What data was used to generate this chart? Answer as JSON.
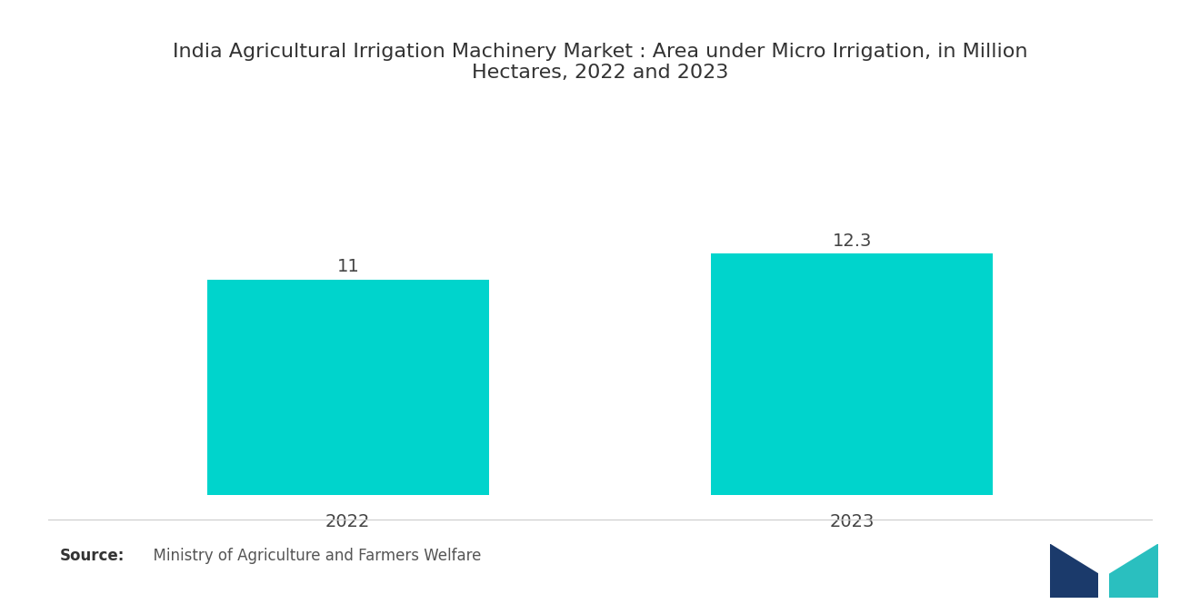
{
  "title": "India Agricultural Irrigation Machinery Market : Area under Micro Irrigation, in Million\nHectares, 2022 and 2023",
  "categories": [
    "2022",
    "2023"
  ],
  "values": [
    11,
    12.3
  ],
  "bar_color": "#00D4CC",
  "value_labels": [
    "11",
    "12.3"
  ],
  "source_bold": "Source:",
  "source_text": "  Ministry of Agriculture and Farmers Welfare",
  "background_color": "#ffffff",
  "title_fontsize": 16,
  "label_fontsize": 14,
  "value_fontsize": 14,
  "source_fontsize": 12,
  "bar_width": 0.28,
  "ylim": [
    0,
    16
  ],
  "figsize": [
    13.2,
    6.65
  ],
  "dpi": 100,
  "logo_left_color": "#1B3A6B",
  "logo_right_color": "#2B7BB9",
  "logo_teal_color": "#2ABFBF"
}
